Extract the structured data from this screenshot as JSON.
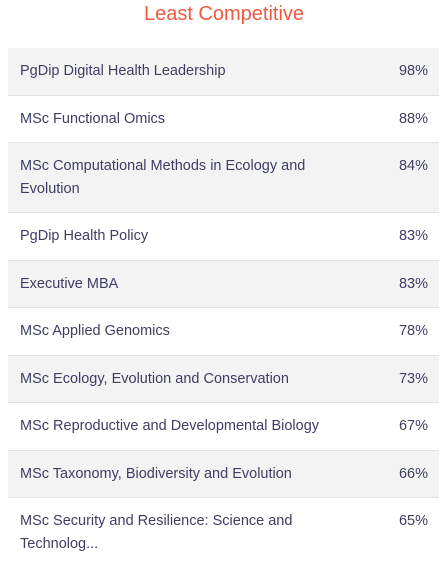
{
  "heading": "Least Competitive",
  "rows": [
    {
      "name": "PgDip Digital Health Leadership",
      "percent": "98%"
    },
    {
      "name": "MSc Functional Omics",
      "percent": "88%"
    },
    {
      "name": "MSc Computational Methods in Ecology and Evolution",
      "percent": "84%"
    },
    {
      "name": "PgDip Health Policy",
      "percent": "83%"
    },
    {
      "name": "Executive MBA",
      "percent": "83%"
    },
    {
      "name": "MSc Applied Genomics",
      "percent": "78%"
    },
    {
      "name": "MSc Ecology, Evolution and Conservation",
      "percent": "73%"
    },
    {
      "name": "MSc Reproductive and Developmental Biology",
      "percent": "67%"
    },
    {
      "name": "MSc Taxonomy, Biodiversity and Evolution",
      "percent": "66%"
    },
    {
      "name": "MSc Security and Resilience: Science and Technolog...",
      "percent": "65%"
    }
  ],
  "colors": {
    "heading": "#ee5a3f",
    "text": "#3c3f63",
    "row_alt": "#f3f3f3",
    "divider": "#e2e2e6"
  }
}
